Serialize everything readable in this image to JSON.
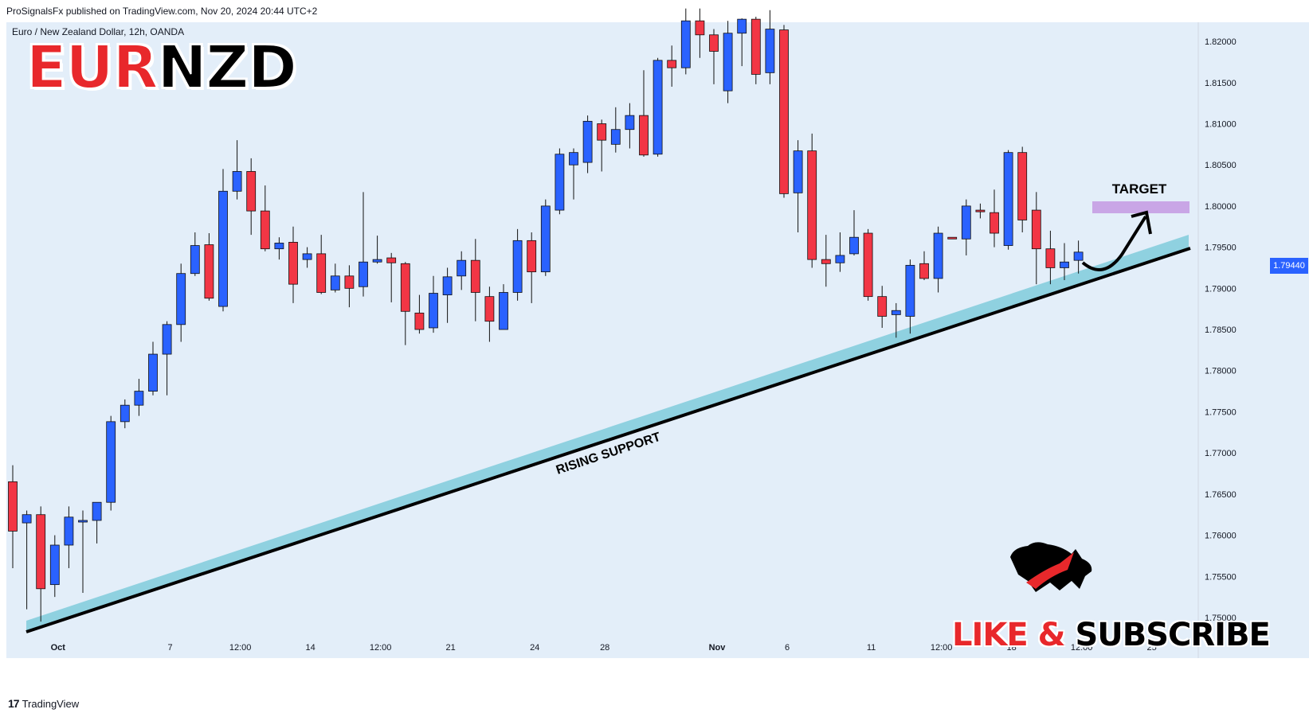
{
  "header": {
    "publisher_line": "ProSignalsFx published on TradingView.com, Nov 20, 2024 20:44 UTC+2"
  },
  "symbol": {
    "description": "Euro / New Zealand Dollar, 12h, OANDA",
    "pair_base": "EUR",
    "pair_quote": "NZD"
  },
  "annotations": {
    "target_label": "TARGET",
    "support_label": "RISING SUPPORT",
    "cta_like": "LIKE & ",
    "cta_subscribe": "SUBSCRIBE"
  },
  "footer": {
    "logo_glyph": "17",
    "brand": "TradingView"
  },
  "colors": {
    "bull": "#2a62ff",
    "bear": "#f23645",
    "plot_background": "#e3eef9",
    "support_band": "#8fd1e0",
    "target_zone": "#c9a6e6"
  },
  "chart_data": {
    "type": "candlestick",
    "interval": "12h",
    "ylim": [
      1.7475,
      1.8235
    ],
    "y_ticks": [
      1.75,
      1.755,
      1.76,
      1.765,
      1.77,
      1.775,
      1.78,
      1.785,
      1.79,
      1.795,
      1.8,
      1.805,
      1.81,
      1.815,
      1.82
    ],
    "y_tick_labels": [
      "1.75000",
      "1.75500",
      "1.76000",
      "1.76500",
      "1.77000",
      "1.77500",
      "1.78000",
      "1.78500",
      "1.79000",
      "1.79500",
      "1.80000",
      "1.80500",
      "1.81000",
      "1.81500",
      "1.82000"
    ],
    "x_tick_labels": [
      {
        "label": "Oct",
        "bar": 3
      },
      {
        "label": "7",
        "bar": 11
      },
      {
        "label": "12:00",
        "bar": 16
      },
      {
        "label": "14",
        "bar": 21
      },
      {
        "label": "12:00",
        "bar": 26
      },
      {
        "label": "21",
        "bar": 31
      },
      {
        "label": "24",
        "bar": 37
      },
      {
        "label": "28",
        "bar": 42
      },
      {
        "label": "Nov",
        "bar": 50
      },
      {
        "label": "6",
        "bar": 55
      },
      {
        "label": "11",
        "bar": 61
      },
      {
        "label": "12:00",
        "bar": 66
      },
      {
        "label": "18",
        "bar": 71
      },
      {
        "label": "12:00",
        "bar": 76
      },
      {
        "label": "25",
        "bar": 81
      }
    ],
    "last_price": "1.79440",
    "candles": [
      {
        "o": 1.7665,
        "h": 1.7685,
        "l": 1.756,
        "c": 1.7605
      },
      {
        "o": 1.7615,
        "h": 1.763,
        "l": 1.751,
        "c": 1.7625
      },
      {
        "o": 1.7625,
        "h": 1.7635,
        "l": 1.7495,
        "c": 1.7535
      },
      {
        "o": 1.754,
        "h": 1.76,
        "l": 1.7525,
        "c": 1.7588
      },
      {
        "o": 1.7588,
        "h": 1.7635,
        "l": 1.756,
        "c": 1.7622
      },
      {
        "o": 1.7616,
        "h": 1.763,
        "l": 1.753,
        "c": 1.7618
      },
      {
        "o": 1.7618,
        "h": 1.764,
        "l": 1.759,
        "c": 1.764
      },
      {
        "o": 1.764,
        "h": 1.7745,
        "l": 1.763,
        "c": 1.7738
      },
      {
        "o": 1.7738,
        "h": 1.7765,
        "l": 1.773,
        "c": 1.7758
      },
      {
        "o": 1.7758,
        "h": 1.779,
        "l": 1.7745,
        "c": 1.7775
      },
      {
        "o": 1.7775,
        "h": 1.7835,
        "l": 1.777,
        "c": 1.782
      },
      {
        "o": 1.782,
        "h": 1.786,
        "l": 1.777,
        "c": 1.7856
      },
      {
        "o": 1.7856,
        "h": 1.793,
        "l": 1.7835,
        "c": 1.7918
      },
      {
        "o": 1.7918,
        "h": 1.7968,
        "l": 1.7915,
        "c": 1.7952
      },
      {
        "o": 1.7953,
        "h": 1.7967,
        "l": 1.7885,
        "c": 1.7888
      },
      {
        "o": 1.7878,
        "h": 1.8045,
        "l": 1.7872,
        "c": 1.8018
      },
      {
        "o": 1.8018,
        "h": 1.808,
        "l": 1.8008,
        "c": 1.8042
      },
      {
        "o": 1.8042,
        "h": 1.8058,
        "l": 1.7965,
        "c": 1.7994
      },
      {
        "o": 1.7994,
        "h": 1.8025,
        "l": 1.7945,
        "c": 1.7948
      },
      {
        "o": 1.7948,
        "h": 1.7962,
        "l": 1.7935,
        "c": 1.7955
      },
      {
        "o": 1.7956,
        "h": 1.7975,
        "l": 1.7882,
        "c": 1.7905
      },
      {
        "o": 1.7935,
        "h": 1.795,
        "l": 1.7925,
        "c": 1.7942
      },
      {
        "o": 1.7942,
        "h": 1.7965,
        "l": 1.7893,
        "c": 1.7895
      },
      {
        "o": 1.7898,
        "h": 1.793,
        "l": 1.7895,
        "c": 1.7915
      },
      {
        "o": 1.7915,
        "h": 1.7928,
        "l": 1.7877,
        "c": 1.79
      },
      {
        "o": 1.7902,
        "h": 1.8017,
        "l": 1.789,
        "c": 1.7932
      },
      {
        "o": 1.7932,
        "h": 1.7964,
        "l": 1.793,
        "c": 1.7935
      },
      {
        "o": 1.7937,
        "h": 1.7943,
        "l": 1.7883,
        "c": 1.7931
      },
      {
        "o": 1.793,
        "h": 1.7932,
        "l": 1.7831,
        "c": 1.7872
      },
      {
        "o": 1.787,
        "h": 1.7892,
        "l": 1.7845,
        "c": 1.785
      },
      {
        "o": 1.7852,
        "h": 1.7915,
        "l": 1.7846,
        "c": 1.7894
      },
      {
        "o": 1.7892,
        "h": 1.7925,
        "l": 1.7858,
        "c": 1.7914
      },
      {
        "o": 1.7915,
        "h": 1.7945,
        "l": 1.7898,
        "c": 1.7934
      },
      {
        "o": 1.7934,
        "h": 1.796,
        "l": 1.786,
        "c": 1.7895
      },
      {
        "o": 1.789,
        "h": 1.7902,
        "l": 1.7835,
        "c": 1.786
      },
      {
        "o": 1.785,
        "h": 1.7905,
        "l": 1.785,
        "c": 1.7895
      },
      {
        "o": 1.7895,
        "h": 1.7972,
        "l": 1.7885,
        "c": 1.7958
      },
      {
        "o": 1.7958,
        "h": 1.7968,
        "l": 1.7882,
        "c": 1.792
      },
      {
        "o": 1.792,
        "h": 1.8008,
        "l": 1.7915,
        "c": 1.8
      },
      {
        "o": 1.7995,
        "h": 1.807,
        "l": 1.799,
        "c": 1.8063
      },
      {
        "o": 1.805,
        "h": 1.807,
        "l": 1.8008,
        "c": 1.8065
      },
      {
        "o": 1.8053,
        "h": 1.811,
        "l": 1.804,
        "c": 1.8103
      },
      {
        "o": 1.81,
        "h": 1.8105,
        "l": 1.8042,
        "c": 1.808
      },
      {
        "o": 1.8075,
        "h": 1.812,
        "l": 1.8065,
        "c": 1.8093
      },
      {
        "o": 1.8093,
        "h": 1.8125,
        "l": 1.807,
        "c": 1.811
      },
      {
        "o": 1.811,
        "h": 1.8165,
        "l": 1.806,
        "c": 1.8062
      },
      {
        "o": 1.8063,
        "h": 1.818,
        "l": 1.806,
        "c": 1.8177
      },
      {
        "o": 1.8177,
        "h": 1.8195,
        "l": 1.8145,
        "c": 1.8168
      },
      {
        "o": 1.8168,
        "h": 1.824,
        "l": 1.816,
        "c": 1.8225
      },
      {
        "o": 1.8225,
        "h": 1.824,
        "l": 1.818,
        "c": 1.8208
      },
      {
        "o": 1.8208,
        "h": 1.8215,
        "l": 1.8148,
        "c": 1.8188
      },
      {
        "o": 1.814,
        "h": 1.8225,
        "l": 1.8125,
        "c": 1.821
      },
      {
        "o": 1.821,
        "h": 1.8228,
        "l": 1.817,
        "c": 1.8227
      },
      {
        "o": 1.8227,
        "h": 1.823,
        "l": 1.8148,
        "c": 1.816
      },
      {
        "o": 1.8162,
        "h": 1.8238,
        "l": 1.8148,
        "c": 1.8215
      },
      {
        "o": 1.8214,
        "h": 1.822,
        "l": 1.801,
        "c": 1.8015
      },
      {
        "o": 1.8016,
        "h": 1.808,
        "l": 1.7968,
        "c": 1.8067
      },
      {
        "o": 1.8067,
        "h": 1.8088,
        "l": 1.7925,
        "c": 1.7935
      },
      {
        "o": 1.7935,
        "h": 1.7965,
        "l": 1.7902,
        "c": 1.793
      },
      {
        "o": 1.7931,
        "h": 1.7968,
        "l": 1.792,
        "c": 1.794
      },
      {
        "o": 1.7942,
        "h": 1.7995,
        "l": 1.794,
        "c": 1.7962
      },
      {
        "o": 1.7967,
        "h": 1.7972,
        "l": 1.7885,
        "c": 1.789
      },
      {
        "o": 1.789,
        "h": 1.7903,
        "l": 1.7852,
        "c": 1.7866
      },
      {
        "o": 1.7868,
        "h": 1.7882,
        "l": 1.784,
        "c": 1.7873
      },
      {
        "o": 1.7866,
        "h": 1.7935,
        "l": 1.7845,
        "c": 1.7928
      },
      {
        "o": 1.793,
        "h": 1.7945,
        "l": 1.791,
        "c": 1.7912
      },
      {
        "o": 1.7912,
        "h": 1.7975,
        "l": 1.7895,
        "c": 1.7967
      },
      {
        "o": 1.7962,
        "h": 1.796,
        "l": 1.796,
        "c": 1.796
      },
      {
        "o": 1.796,
        "h": 1.8008,
        "l": 1.794,
        "c": 1.8
      },
      {
        "o": 1.7995,
        "h": 1.8003,
        "l": 1.7985,
        "c": 1.7993
      },
      {
        "o": 1.7992,
        "h": 1.802,
        "l": 1.795,
        "c": 1.7967
      },
      {
        "o": 1.7952,
        "h": 1.8068,
        "l": 1.7947,
        "c": 1.8065
      },
      {
        "o": 1.8065,
        "h": 1.8072,
        "l": 1.7968,
        "c": 1.7983
      },
      {
        "o": 1.7995,
        "h": 1.8017,
        "l": 1.7905,
        "c": 1.7948
      },
      {
        "o": 1.7948,
        "h": 1.797,
        "l": 1.7905,
        "c": 1.7925
      },
      {
        "o": 1.7925,
        "h": 1.7955,
        "l": 1.791,
        "c": 1.7932
      },
      {
        "o": 1.7934,
        "h": 1.7958,
        "l": 1.7918,
        "c": 1.7944
      }
    ]
  }
}
